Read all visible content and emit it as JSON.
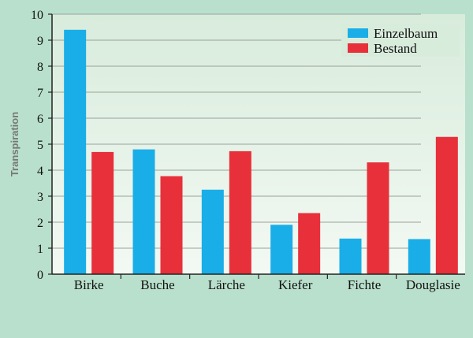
{
  "chart_data": {
    "type": "bar",
    "title": "",
    "xlabel": "",
    "ylabel": "Transpiration",
    "ylim": [
      0,
      10
    ],
    "yticks": [
      0,
      1,
      2,
      3,
      4,
      5,
      6,
      7,
      8,
      9,
      10
    ],
    "categories": [
      "Birke",
      "Buche",
      "Lärche",
      "Kiefer",
      "Fichte",
      "Douglasie"
    ],
    "series": [
      {
        "name": "Einzelbaum",
        "color": "#1aaee8",
        "values": [
          9.4,
          4.8,
          3.25,
          1.9,
          1.37,
          1.35
        ]
      },
      {
        "name": "Bestand",
        "color": "#e8303a",
        "values": [
          4.7,
          3.77,
          4.73,
          2.35,
          4.3,
          5.28
        ]
      }
    ],
    "grid": true,
    "legend_position": "top-right",
    "colors": {
      "background": "#b9e0cc",
      "plot_top": "#d8ecdc",
      "plot_bottom": "#f3f9f3",
      "gridline": "#9aa39b"
    }
  }
}
